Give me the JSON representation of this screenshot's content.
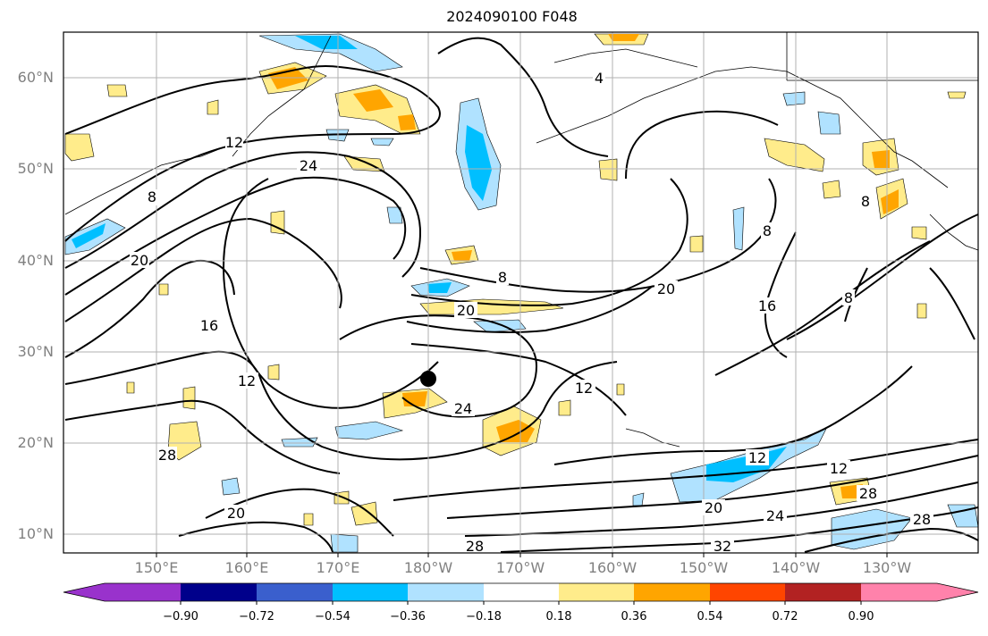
{
  "map": {
    "title": "2024090100 F048",
    "lat_labels": [
      "60°N",
      "50°N",
      "40°N",
      "30°N",
      "20°N",
      "10°N"
    ],
    "lon_labels": [
      "150°E",
      "160°E",
      "170°E",
      "180°W",
      "170°W",
      "160°W",
      "150°W",
      "140°W",
      "130°W"
    ],
    "contour_labels": [
      "24",
      "12",
      "20",
      "8",
      "8",
      "20",
      "20",
      "16",
      "12",
      "12",
      "24",
      "28",
      "20",
      "24",
      "12",
      "12",
      "28",
      "8",
      "28",
      "32",
      "28",
      "20",
      "8",
      "4",
      "16",
      "8"
    ],
    "marker": "storm-center",
    "grid": true
  },
  "colorbar": {
    "ticks": [
      "−0.90",
      "−0.72",
      "−0.54",
      "−0.36",
      "−0.18",
      "0.18",
      "0.36",
      "0.54",
      "0.72",
      "0.90"
    ],
    "colors": [
      "#9932cc",
      "#00008b",
      "#3a5fcd",
      "#00bfff",
      "#b0e2ff",
      "#ffffff",
      "#ffec8b",
      "#ffa500",
      "#ff4500",
      "#b22222",
      "#ff82ab"
    ]
  }
}
